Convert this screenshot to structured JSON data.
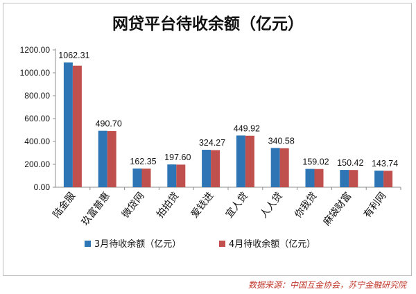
{
  "chart_data": {
    "type": "bar",
    "title": "网贷平台待收余额（亿元）",
    "categories": [
      "陆金服",
      "玖富普惠",
      "微贷网",
      "拍拍贷",
      "爱钱进",
      "宜人贷",
      "人人贷",
      "你我贷",
      "麻袋财富",
      "有利网"
    ],
    "series": [
      {
        "name": "3月待收余额（亿元）",
        "color": "#2e75b6",
        "values": [
          1090,
          493,
          163,
          199,
          327,
          452,
          343,
          160,
          151,
          145
        ]
      },
      {
        "name": "4月待收余额（亿元）",
        "color": "#c0504d",
        "values": [
          1062.31,
          490.7,
          162.35,
          197.6,
          324.27,
          449.92,
          340.58,
          159.02,
          150.42,
          143.74
        ]
      }
    ],
    "data_labels": [
      "1062.31",
      "490.70",
      "162.35",
      "197.60",
      "324.27",
      "449.92",
      "340.58",
      "159.02",
      "150.42",
      "143.74"
    ],
    "y_ticks": [
      "0.00",
      "200.00",
      "400.00",
      "600.00",
      "800.00",
      "1000.00",
      "1200.00"
    ],
    "ylim": [
      0,
      1200
    ],
    "xlabel": "",
    "ylabel": "",
    "grid": false,
    "legend_position": "bottom"
  },
  "source_text": "数据来源：中国互金协会，苏宁金融研究院"
}
